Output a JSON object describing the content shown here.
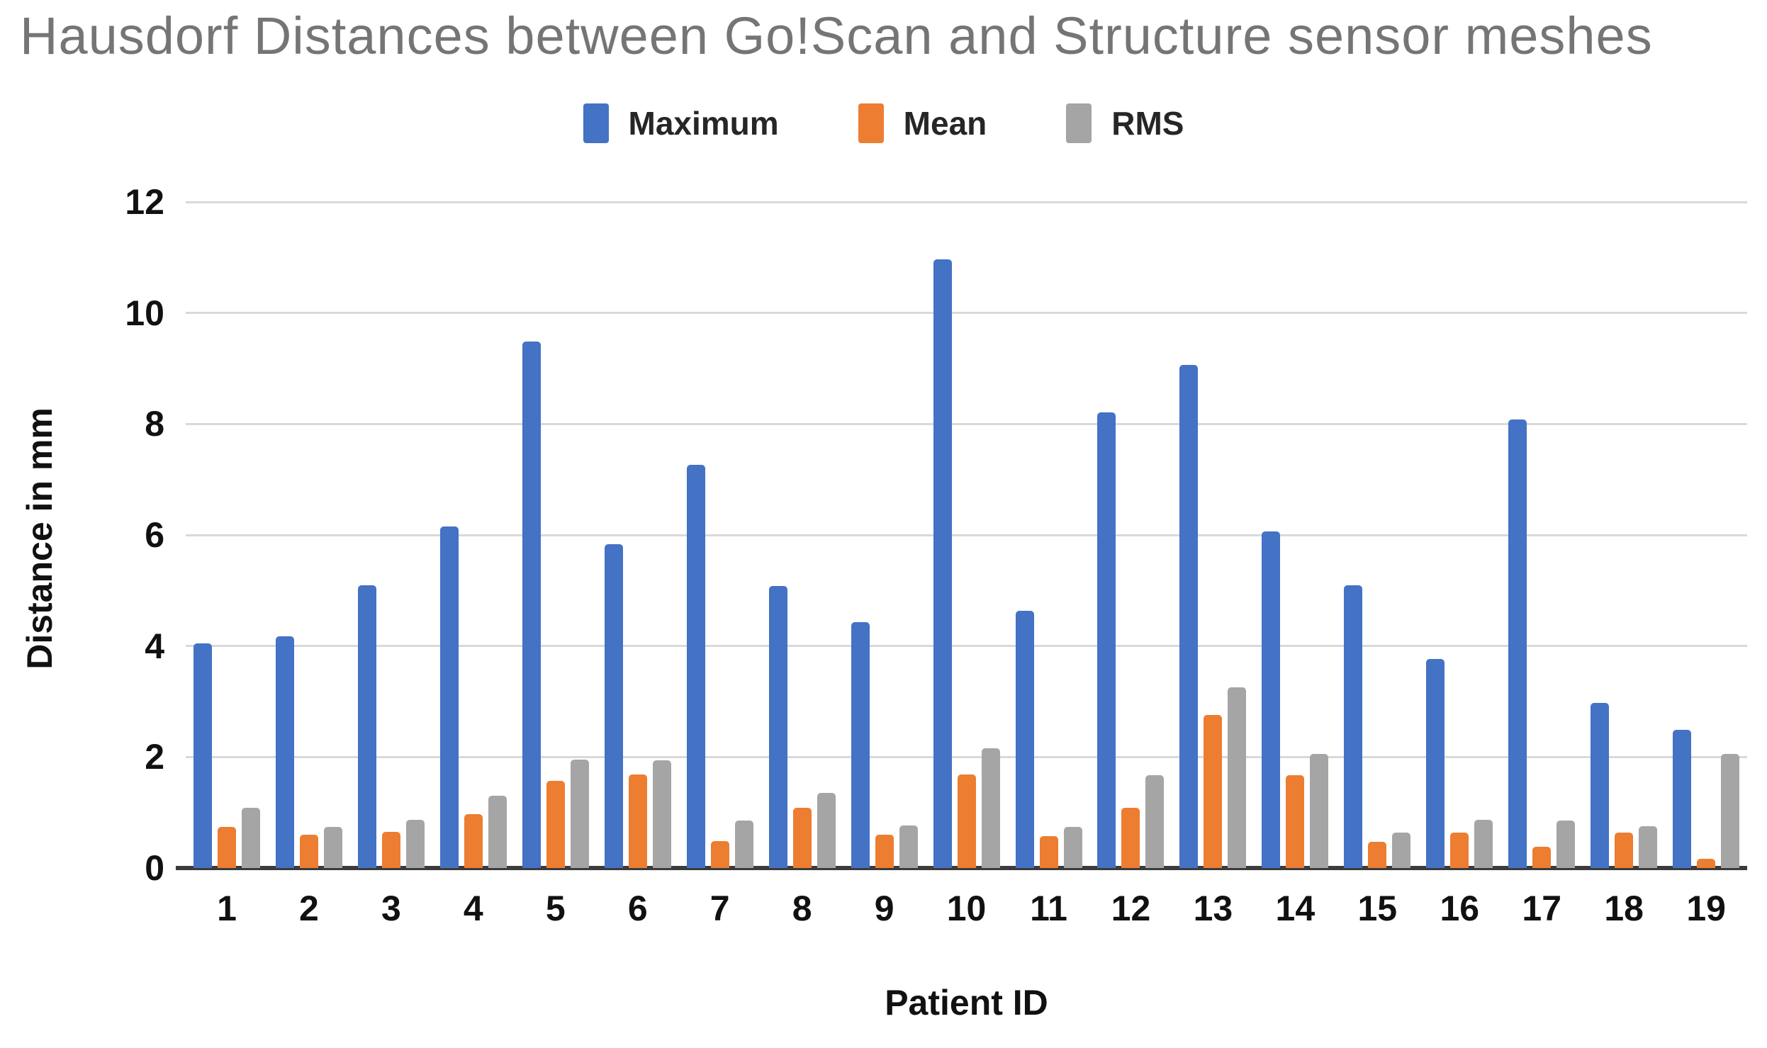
{
  "chart_data": {
    "type": "bar",
    "title": "Hausdorf Distances between Go!Scan and Structure sensor meshes",
    "xlabel": "Patient ID",
    "ylabel": "Distance in mm",
    "ylim": [
      0,
      12
    ],
    "yticks": [
      0,
      2,
      4,
      6,
      8,
      10,
      12
    ],
    "grid": true,
    "legend_position": "top-center",
    "categories": [
      "1",
      "2",
      "3",
      "4",
      "5",
      "6",
      "7",
      "8",
      "9",
      "10",
      "11",
      "12",
      "13",
      "14",
      "15",
      "16",
      "17",
      "18",
      "19"
    ],
    "series": [
      {
        "name": "Maximum",
        "color": "#4472C4",
        "values": [
          4.05,
          4.18,
          5.1,
          6.15,
          9.48,
          5.83,
          7.27,
          5.08,
          4.43,
          10.97,
          4.64,
          8.21,
          9.06,
          6.06,
          5.09,
          3.77,
          8.08,
          2.97,
          2.49
        ]
      },
      {
        "name": "Mean",
        "color": "#ED7D31",
        "values": [
          0.74,
          0.6,
          0.65,
          0.97,
          1.57,
          1.68,
          0.48,
          1.08,
          0.6,
          1.68,
          0.58,
          1.08,
          2.76,
          1.67,
          0.47,
          0.64,
          0.38,
          0.64,
          0.16
        ]
      },
      {
        "name": "RMS",
        "color": "#A5A5A5",
        "values": [
          1.08,
          0.74,
          0.87,
          1.3,
          1.95,
          1.94,
          0.86,
          1.35,
          0.76,
          2.16,
          0.74,
          1.67,
          3.25,
          2.06,
          0.64,
          0.87,
          0.86,
          0.75,
          2.06
        ]
      }
    ]
  },
  "colors": {
    "gridline": "#D9D9D9",
    "axis_line": "#3B3B3B",
    "title_text": "#757575",
    "label_text": "#111111",
    "background": "#FFFFFF"
  }
}
